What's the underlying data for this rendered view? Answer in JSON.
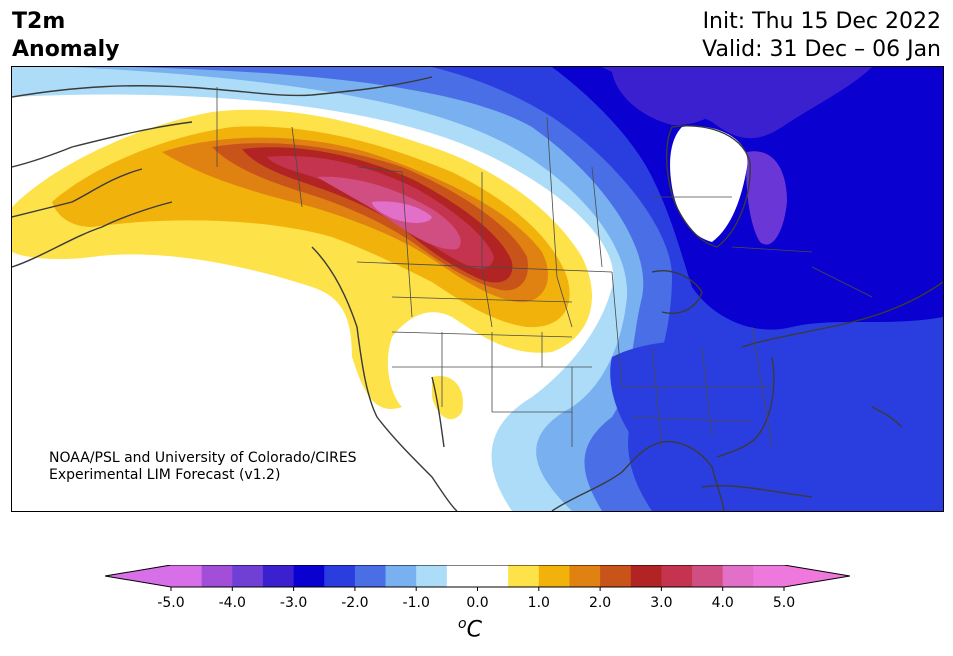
{
  "header": {
    "title_line1": "T2m",
    "title_line2": "Anomaly",
    "init": "Init: Thu 15 Dec 2022",
    "valid": "Valid: 31 Dec – 06 Jan"
  },
  "credit": {
    "line1": "NOAA/PSL and University of Colorado/CIRES",
    "line2": "Experimental LIM Forecast (v1.2)"
  },
  "colorbar": {
    "unit_sup": "o",
    "unit": "C",
    "tick_labels": [
      "-5.0",
      "-4.0",
      "-3.0",
      "-2.0",
      "-1.0",
      "0.0",
      "1.0",
      "2.0",
      "3.0",
      "4.0",
      "5.0"
    ],
    "colors": [
      "#d66fe8",
      "#a24ed9",
      "#7040d6",
      "#3b20d0",
      "#0a00d0",
      "#2a3ee0",
      "#4a6ee6",
      "#79b0f0",
      "#addcf8",
      "#ffffff",
      "#ffffff",
      "#fde24a",
      "#f2b20c",
      "#e08212",
      "#c9541a",
      "#b22424",
      "#c4344e",
      "#d04e82",
      "#e270c8",
      "#ee78dc"
    ],
    "under_color": "#d66fe8",
    "over_color": "#ee78dc"
  },
  "map": {
    "description_region": "North America",
    "cold_colors": [
      "#addcf8",
      "#79b0f0",
      "#4a6ee6",
      "#2a3ee0",
      "#0a00d0",
      "#3b20d0"
    ],
    "warm_colors": [
      "#fde24a",
      "#f2b20c",
      "#e08212",
      "#c9541a",
      "#b22424",
      "#c4344e",
      "#d04e82"
    ]
  }
}
